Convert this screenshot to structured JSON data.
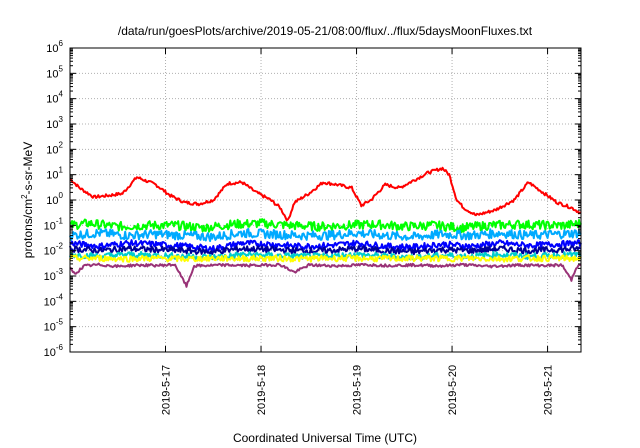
{
  "chart_data": {
    "type": "line",
    "title": "/data/run/goesPlots/archive/2019-05-21/08:00/flux/../flux/5daysMoonFluxes.txt",
    "xlabel": "Coordinated Universal Time (UTC)",
    "ylabel": {
      "prefix": "protons/cm",
      "sup": "2",
      "suffix": "-s-sr-MeV"
    },
    "y_scale": "log",
    "ylim_exp": [
      -6,
      6
    ],
    "x_ticks": [
      "2019-5-17",
      "2019-5-18",
      "2019-5-19",
      "2019-5-20",
      "2019-5-21"
    ],
    "x_range_days": [
      16.0,
      21.35
    ],
    "grid": true,
    "series": [
      {
        "color": "#ff0000",
        "x": [
          16.0,
          16.1,
          16.25,
          16.4,
          16.55,
          16.7,
          16.9,
          17.05,
          17.2,
          17.35,
          17.5,
          17.65,
          17.8,
          17.95,
          18.1,
          18.2,
          18.28,
          18.35,
          18.5,
          18.65,
          18.8,
          18.95,
          19.05,
          19.15,
          19.3,
          19.45,
          19.6,
          19.75,
          19.9,
          19.97,
          20.05,
          20.12,
          20.25,
          20.45,
          20.65,
          20.8,
          20.95,
          21.1,
          21.25,
          21.35
        ],
        "y": [
          7,
          3,
          1.3,
          1.5,
          1.8,
          8,
          4,
          1.5,
          0.8,
          0.7,
          1.0,
          4.5,
          5,
          2.0,
          1.0,
          0.5,
          0.15,
          0.8,
          1.8,
          5,
          4,
          3,
          0.6,
          1.0,
          4,
          3,
          6,
          12,
          18,
          10,
          1.0,
          0.5,
          0.25,
          0.4,
          1.0,
          5,
          2.0,
          0.8,
          0.5,
          0.3
        ]
      },
      {
        "color": "#00ff00",
        "x": [
          16.0,
          16.2,
          16.5,
          16.8,
          17.1,
          17.4,
          17.7,
          18.0,
          18.3,
          18.6,
          18.9,
          19.2,
          19.5,
          19.8,
          20.1,
          20.4,
          20.7,
          21.0,
          21.2,
          21.35
        ],
        "y": [
          0.1,
          0.12,
          0.09,
          0.1,
          0.1,
          0.08,
          0.11,
          0.12,
          0.1,
          0.09,
          0.1,
          0.11,
          0.09,
          0.1,
          0.08,
          0.1,
          0.11,
          0.1,
          0.1,
          0.12
        ]
      },
      {
        "color": "#00aaff",
        "x": [
          16.0,
          16.3,
          16.6,
          16.9,
          17.2,
          17.5,
          17.8,
          18.1,
          18.4,
          18.7,
          19.0,
          19.3,
          19.6,
          19.9,
          20.2,
          20.5,
          20.8,
          21.1,
          21.35
        ],
        "y": [
          0.04,
          0.05,
          0.04,
          0.045,
          0.04,
          0.035,
          0.05,
          0.045,
          0.04,
          0.04,
          0.05,
          0.04,
          0.035,
          0.045,
          0.04,
          0.05,
          0.04,
          0.045,
          0.05
        ]
      },
      {
        "color": "#0000ff",
        "x": [
          16.0,
          16.3,
          16.6,
          16.9,
          17.2,
          17.5,
          17.8,
          18.1,
          18.4,
          18.7,
          19.0,
          19.3,
          19.6,
          19.9,
          20.2,
          20.5,
          20.8,
          21.1,
          21.35
        ],
        "y": [
          0.02,
          0.015,
          0.02,
          0.018,
          0.015,
          0.012,
          0.02,
          0.018,
          0.015,
          0.016,
          0.02,
          0.015,
          0.014,
          0.018,
          0.015,
          0.02,
          0.016,
          0.018,
          0.02
        ]
      },
      {
        "color": "#000099",
        "x": [
          16.0,
          16.3,
          16.6,
          16.9,
          17.2,
          17.5,
          17.8,
          18.1,
          18.4,
          18.7,
          19.0,
          19.3,
          19.6,
          19.9,
          20.2,
          20.5,
          20.8,
          21.1,
          21.35
        ],
        "y": [
          0.012,
          0.01,
          0.012,
          0.011,
          0.01,
          0.009,
          0.012,
          0.011,
          0.01,
          0.01,
          0.012,
          0.01,
          0.009,
          0.011,
          0.01,
          0.012,
          0.01,
          0.011,
          0.012
        ]
      },
      {
        "color": "#00cccc",
        "x": [
          16.0,
          16.3,
          16.6,
          16.9,
          17.2,
          17.5,
          17.8,
          18.1,
          18.4,
          18.7,
          19.0,
          19.3,
          19.6,
          19.9,
          20.2,
          20.5,
          20.8,
          21.1,
          21.35
        ],
        "y": [
          0.007,
          0.006,
          0.007,
          0.0065,
          0.006,
          0.0055,
          0.007,
          0.0065,
          0.006,
          0.006,
          0.007,
          0.006,
          0.0055,
          0.0065,
          0.006,
          0.007,
          0.006,
          0.0065,
          0.007
        ]
      },
      {
        "color": "#ffff00",
        "x": [
          16.0,
          16.3,
          16.6,
          16.9,
          17.2,
          17.5,
          17.8,
          18.1,
          18.4,
          18.7,
          19.0,
          19.3,
          19.6,
          19.9,
          20.2,
          20.5,
          20.8,
          21.1,
          21.35
        ],
        "y": [
          0.005,
          0.005,
          0.0048,
          0.005,
          0.0047,
          0.005,
          0.0049,
          0.005,
          0.0048,
          0.005,
          0.005,
          0.0048,
          0.005,
          0.0049,
          0.005,
          0.0048,
          0.005,
          0.005,
          0.0049
        ]
      },
      {
        "color": "#993377",
        "x": [
          16.0,
          16.05,
          16.15,
          16.3,
          16.5,
          16.7,
          16.9,
          17.1,
          17.15,
          17.22,
          17.3,
          17.6,
          17.9,
          18.2,
          18.35,
          18.5,
          18.8,
          19.1,
          19.3,
          19.6,
          19.9,
          20.1,
          20.4,
          20.7,
          21.0,
          21.15,
          21.25,
          21.3,
          21.35
        ],
        "y": [
          0.002,
          0.0012,
          0.0025,
          0.0028,
          0.0024,
          0.0027,
          0.0026,
          0.0028,
          0.0012,
          0.0004,
          0.0025,
          0.0027,
          0.0026,
          0.0028,
          0.0014,
          0.0027,
          0.0025,
          0.0028,
          0.0026,
          0.0027,
          0.0025,
          0.0028,
          0.0024,
          0.0027,
          0.0026,
          0.0027,
          0.0007,
          0.0022,
          0.0028
        ]
      }
    ]
  }
}
